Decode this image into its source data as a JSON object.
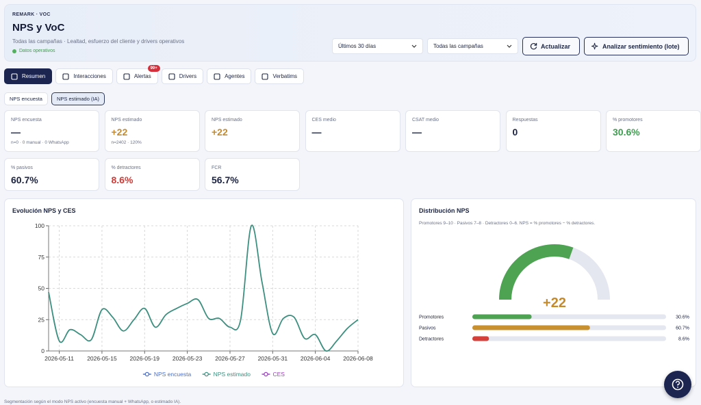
{
  "header": {
    "eyebrow": "REMARK · VOC",
    "title": "NPS y VoC",
    "subtitle": "Todas las campañas · Lealtad, esfuerzo del cliente y drivers operativos",
    "status": "Datos operativos"
  },
  "controls": {
    "period": "Últimos 30 días",
    "campaign": "Todas las campañas",
    "refresh": "Actualizar",
    "analyze": "Analizar sentimiento (lote)"
  },
  "tabs": [
    {
      "label": "Resumen",
      "active": true
    },
    {
      "label": "Interacciones"
    },
    {
      "label": "Alertas",
      "badge": "99+"
    },
    {
      "label": "Drivers"
    },
    {
      "label": "Agentes"
    },
    {
      "label": "Verbatims"
    }
  ],
  "modes": [
    {
      "label": "NPS encuesta"
    },
    {
      "label": "NPS estimado (IA)",
      "selected": true
    }
  ],
  "cards": [
    {
      "label": "NPS encuesta",
      "value": "—",
      "note": "n=0 · 0 manual · 0 WhatsApp"
    },
    {
      "label": "NPS estimado",
      "value": "+22",
      "note": "n=2402 · 120%",
      "color": "#c48a2c"
    },
    {
      "label": "NPS estimado",
      "value": "+22",
      "color": "#c48a2c"
    },
    {
      "label": "CES medio",
      "value": "—"
    },
    {
      "label": "CSAT medio",
      "value": "—"
    },
    {
      "label": "Respuestas",
      "value": "0"
    },
    {
      "label": "% promotores",
      "value": "30.6%",
      "color": "#3f9b4f"
    },
    {
      "label": "% pasivos",
      "value": "60.7%"
    },
    {
      "label": "% detractores",
      "value": "8.6%",
      "color": "#cf3b36"
    },
    {
      "label": "FCR",
      "value": "56.7%"
    }
  ],
  "chart_data": [
    {
      "type": "line",
      "title": "Evolución NPS y CES",
      "x": [
        "2026-05-10",
        "2026-05-11",
        "2026-05-12",
        "2026-05-13",
        "2026-05-14",
        "2026-05-15",
        "2026-05-16",
        "2026-05-17",
        "2026-05-18",
        "2026-05-19",
        "2026-05-20",
        "2026-05-21",
        "2026-05-22",
        "2026-05-23",
        "2026-05-24",
        "2026-05-25",
        "2026-05-26",
        "2026-05-27",
        "2026-05-28",
        "2026-05-29",
        "2026-05-30",
        "2026-05-31",
        "2026-06-01",
        "2026-06-02",
        "2026-06-03",
        "2026-06-04",
        "2026-06-05",
        "2026-06-06",
        "2026-06-07",
        "2026-06-08"
      ],
      "xticks": [
        "2026-05-11",
        "2026-05-15",
        "2026-05-19",
        "2026-05-23",
        "2026-05-27",
        "2026-05-31",
        "2026-06-04",
        "2026-06-08"
      ],
      "series": [
        {
          "name": "NPS encuesta",
          "color": "#4a6fc9",
          "values": [
            null,
            null,
            null,
            null,
            null,
            null,
            null,
            null,
            null,
            null,
            null,
            null,
            null,
            null,
            null,
            null,
            null,
            null,
            null,
            null,
            null,
            null,
            null,
            null,
            null,
            null,
            null,
            null,
            null,
            null
          ]
        },
        {
          "name": "NPS estimado",
          "color": "#3d8f7f",
          "values": [
            47,
            8,
            17,
            13,
            9,
            33,
            27,
            16,
            25,
            34,
            19,
            29,
            34,
            38,
            41,
            26,
            26,
            19,
            25,
            100,
            55,
            14,
            26,
            27,
            10,
            13,
            0,
            8,
            18,
            25
          ]
        },
        {
          "name": "CES",
          "color": "#9a3fc0",
          "values": [
            null,
            null,
            null,
            null,
            null,
            null,
            null,
            null,
            null,
            null,
            null,
            null,
            null,
            null,
            null,
            null,
            null,
            null,
            null,
            null,
            null,
            null,
            null,
            null,
            null,
            null,
            null,
            null,
            null,
            null
          ]
        }
      ],
      "ylim": [
        0,
        100
      ],
      "yticks": [
        0,
        25,
        50,
        75,
        100
      ],
      "grid": true
    },
    {
      "type": "gauge",
      "title": "Distribución NPS",
      "subtitle": "Promotores 9–10 · Pasivos 7–8 · Detractores 0–6. NPS = % promotores − % detractores.",
      "value": 22,
      "value_label": "+22",
      "lim": [
        -100,
        100
      ],
      "color": "#4ea353",
      "value_color": "#c48a2c",
      "categories": [
        "Promotores",
        "Pasivos",
        "Detractores"
      ],
      "values": [
        30.6,
        60.7,
        8.6
      ],
      "value_labels": [
        "30.6%",
        "60.7%",
        "8.6%"
      ],
      "colors": [
        "#4ea353",
        "#c8902f",
        "#d6403a"
      ],
      "xlim": [
        0,
        100
      ]
    }
  ],
  "footer": "Segmentación según el modo NPS activo (encuesta manual + WhatsApp, o estimado IA)."
}
